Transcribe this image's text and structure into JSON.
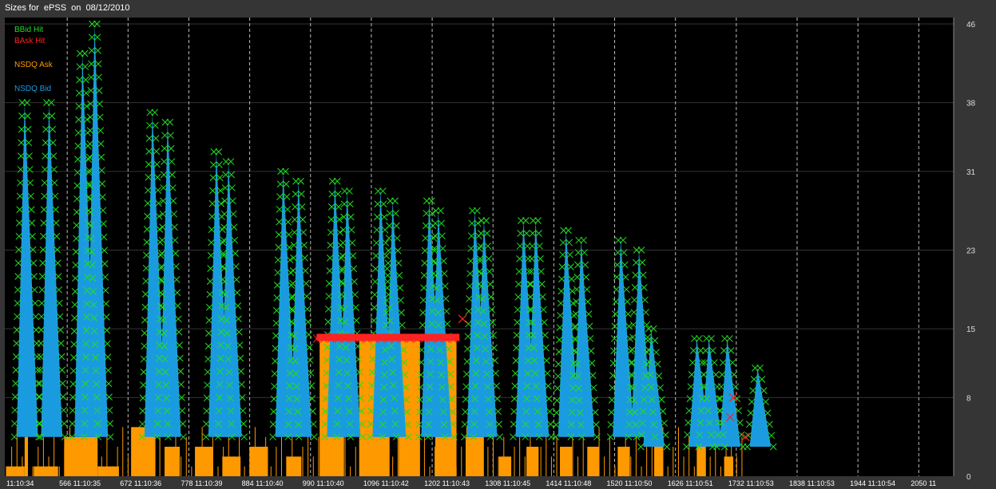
{
  "window": {
    "title": "Sizes for  ePSS  on  08/12/2010"
  },
  "legend": [
    {
      "label": "BBid Hit",
      "color": "#22dd22"
    },
    {
      "label": "BAsk Hit",
      "color": "#ff2222"
    },
    {
      "label": "NSDQ Ask",
      "color": "#ff9900"
    },
    {
      "label": "NSDQ Bid",
      "color": "#1a9be0"
    }
  ],
  "chart_data": {
    "type": "area",
    "title": "Sizes for  ePSS  on  08/12/2010",
    "ylim": [
      0,
      46
    ],
    "y_ticks": [
      0,
      8,
      15,
      23,
      31,
      38,
      46
    ],
    "x_tick_labels": [
      "11:10:34",
      "566 11:10:35",
      "672 11:10:36",
      "778 11:10:39",
      "884 11:10:40",
      "990 11:10:40",
      "1096 11:10:42",
      "1202 11:10:43",
      "1308 11:10:45",
      "1414 11:10:48",
      "1520 11:10:50",
      "1626 11:10:51",
      "1732 11:10:53",
      "1838 11:10:53",
      "1944 11:10:54",
      "2050 11"
    ],
    "grid": true,
    "series": [
      {
        "name": "NSDQ Bid",
        "color": "#1a9be0",
        "peaks": [
          {
            "x": 0.3,
            "y": 38
          },
          {
            "x": 0.7,
            "y": 38
          },
          {
            "x": 1.25,
            "y": 43
          },
          {
            "x": 1.45,
            "y": 46
          },
          {
            "x": 2.4,
            "y": 37
          },
          {
            "x": 2.65,
            "y": 36
          },
          {
            "x": 3.45,
            "y": 33
          },
          {
            "x": 3.65,
            "y": 32
          },
          {
            "x": 4.55,
            "y": 31
          },
          {
            "x": 4.8,
            "y": 30
          },
          {
            "x": 5.4,
            "y": 30
          },
          {
            "x": 5.6,
            "y": 29
          },
          {
            "x": 6.15,
            "y": 29
          },
          {
            "x": 6.35,
            "y": 28
          },
          {
            "x": 6.95,
            "y": 28
          },
          {
            "x": 7.1,
            "y": 27
          },
          {
            "x": 7.7,
            "y": 27
          },
          {
            "x": 7.85,
            "y": 26
          },
          {
            "x": 8.5,
            "y": 26
          },
          {
            "x": 8.7,
            "y": 26
          },
          {
            "x": 9.2,
            "y": 25
          },
          {
            "x": 9.45,
            "y": 24
          },
          {
            "x": 10.1,
            "y": 24
          },
          {
            "x": 10.4,
            "y": 23
          },
          {
            "x": 10.6,
            "y": 15
          },
          {
            "x": 11.35,
            "y": 14
          },
          {
            "x": 11.55,
            "y": 14
          },
          {
            "x": 11.85,
            "y": 14
          },
          {
            "x": 12.35,
            "y": 11
          }
        ]
      },
      {
        "name": "NSDQ Ask",
        "color": "#ff9900",
        "blocks": [
          {
            "x0": 0.0,
            "x1": 0.3,
            "y": 1
          },
          {
            "x0": 0.3,
            "x1": 0.35,
            "y": 4
          },
          {
            "x0": 0.45,
            "x1": 0.85,
            "y": 1
          },
          {
            "x0": 0.95,
            "x1": 1.5,
            "y": 4
          },
          {
            "x0": 1.5,
            "x1": 1.85,
            "y": 1
          },
          {
            "x0": 2.05,
            "x1": 2.45,
            "y": 5
          },
          {
            "x0": 2.6,
            "x1": 2.85,
            "y": 3
          },
          {
            "x0": 3.1,
            "x1": 3.4,
            "y": 3
          },
          {
            "x0": 3.55,
            "x1": 3.85,
            "y": 2
          },
          {
            "x0": 4.0,
            "x1": 4.3,
            "y": 3
          },
          {
            "x0": 4.6,
            "x1": 4.85,
            "y": 2
          },
          {
            "x0": 5.15,
            "x1": 5.55,
            "y": 14
          },
          {
            "x0": 5.8,
            "x1": 6.3,
            "y": 14
          },
          {
            "x0": 6.45,
            "x1": 6.8,
            "y": 14
          },
          {
            "x0": 7.05,
            "x1": 7.4,
            "y": 14
          },
          {
            "x0": 7.55,
            "x1": 7.85,
            "y": 4
          },
          {
            "x0": 8.1,
            "x1": 8.3,
            "y": 2
          },
          {
            "x0": 8.55,
            "x1": 8.75,
            "y": 3
          },
          {
            "x0": 9.1,
            "x1": 9.3,
            "y": 3
          },
          {
            "x0": 9.55,
            "x1": 9.75,
            "y": 3
          },
          {
            "x0": 10.05,
            "x1": 10.25,
            "y": 3
          },
          {
            "x0": 10.65,
            "x1": 10.8,
            "y": 5
          },
          {
            "x0": 11.35,
            "x1": 11.5,
            "y": 5
          },
          {
            "x0": 11.8,
            "x1": 11.95,
            "y": 2
          }
        ]
      },
      {
        "name": "BAsk Hit",
        "color": "#ff2222",
        "band": {
          "x0": 5.1,
          "x1": 7.45,
          "y": 14
        },
        "markers": [
          {
            "x": 7.5,
            "y": 16
          },
          {
            "x": 11.95,
            "y": 8
          },
          {
            "x": 12.15,
            "y": 4
          },
          {
            "x": 11.9,
            "y": 6
          }
        ]
      }
    ]
  }
}
